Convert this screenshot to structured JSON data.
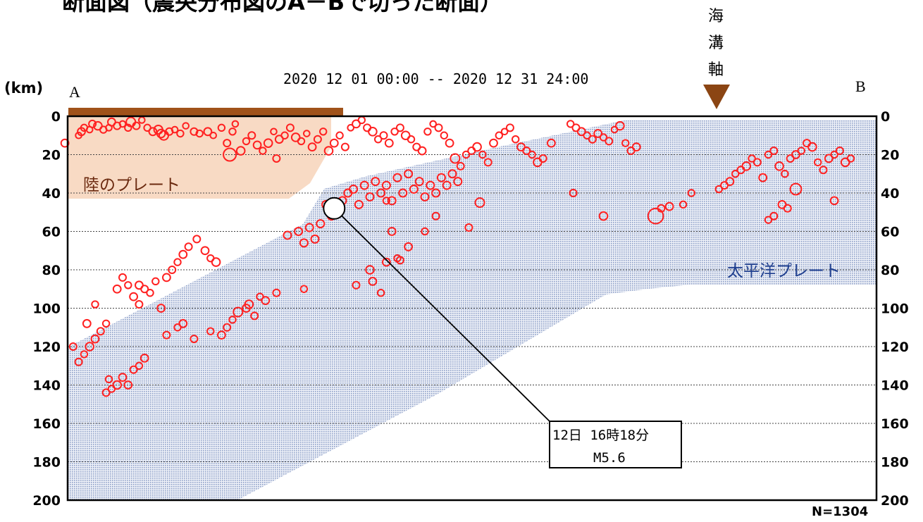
{
  "title": "断面図（震央分布図のA－Bで切った断面）",
  "period": "2020 12 01 00:00 -- 2020 12 31 24:00",
  "unit_label": "(km)",
  "end_labels": {
    "left": "A",
    "right": "B"
  },
  "trench": {
    "label_chars": [
      "海",
      "溝",
      "軸"
    ],
    "color": "#8B4513"
  },
  "land_plate_label": "陸のプレート",
  "pacific_plate_label": "太平洋プレート",
  "count_label": "N=1304",
  "callout": {
    "line1": "12日 16時18分",
    "line2": "M5.6"
  },
  "colors": {
    "event": "#ff2020",
    "land_plate": "#f5c8a8",
    "pacific_plate": "#aab7d6",
    "land_label": "#6b2a10",
    "pacific_label": "#1f3f8f",
    "land_bar": "#a0521a"
  },
  "chart_data": {
    "type": "scatter",
    "ylabel": "(km)",
    "ylim": [
      0,
      200
    ],
    "yticks": [
      0,
      20,
      40,
      60,
      80,
      100,
      120,
      140,
      160,
      180,
      200
    ],
    "y_inverted": true,
    "grid": "horizontal dashed",
    "series": [
      {
        "description": "hypocenters (distance along A-B, depth km, magnitude)",
        "points": [
          [
            -1,
            14,
            1.5
          ],
          [
            4,
            10,
            1.2
          ],
          [
            5,
            8,
            1.5
          ],
          [
            6,
            6,
            1.3
          ],
          [
            8,
            7,
            1.2
          ],
          [
            9,
            4,
            1.4
          ],
          [
            11,
            5,
            1.6
          ],
          [
            13,
            7,
            1.3
          ],
          [
            15,
            6,
            1.2
          ],
          [
            16,
            3,
            1.5
          ],
          [
            18,
            5,
            1.4
          ],
          [
            20,
            4,
            1.2
          ],
          [
            22,
            6,
            1.3
          ],
          [
            23,
            3,
            1.8
          ],
          [
            25,
            5,
            1.4
          ],
          [
            27,
            2,
            1.2
          ],
          [
            29,
            6,
            1.3
          ],
          [
            31,
            8,
            1.5
          ],
          [
            33,
            7,
            1.7
          ],
          [
            34,
            9,
            1.6
          ],
          [
            35,
            10,
            1.8
          ],
          [
            37,
            8,
            1.4
          ],
          [
            39,
            7,
            1.2
          ],
          [
            41,
            9,
            1.3
          ],
          [
            43,
            5,
            1.2
          ],
          [
            46,
            8,
            1.4
          ],
          [
            48,
            9,
            1.3
          ],
          [
            51,
            8,
            1.5
          ],
          [
            53,
            10,
            1.2
          ],
          [
            56,
            6,
            1.3
          ],
          [
            58,
            14,
            1.4
          ],
          [
            59,
            20,
            2.5
          ],
          [
            60,
            8,
            1.3
          ],
          [
            61,
            4,
            1.2
          ],
          [
            63,
            18,
            1.6
          ],
          [
            65,
            13,
            1.3
          ],
          [
            67,
            10,
            1.4
          ],
          [
            69,
            15,
            1.5
          ],
          [
            71,
            18,
            1.3
          ],
          [
            73,
            14,
            1.6
          ],
          [
            75,
            8,
            1.2
          ],
          [
            76,
            22,
            1.4
          ],
          [
            77,
            12,
            1.5
          ],
          [
            79,
            10,
            1.3
          ],
          [
            81,
            6,
            1.4
          ],
          [
            83,
            11,
            1.6
          ],
          [
            85,
            13,
            1.3
          ],
          [
            87,
            9,
            1.2
          ],
          [
            89,
            16,
            1.5
          ],
          [
            91,
            12,
            1.4
          ],
          [
            93,
            8,
            1.3
          ],
          [
            95,
            18,
            1.6
          ],
          [
            97,
            14,
            1.5
          ],
          [
            99,
            10,
            1.3
          ],
          [
            101,
            16,
            1.4
          ],
          [
            103,
            6,
            1.2
          ],
          [
            105,
            4,
            1.5
          ],
          [
            107,
            2,
            1.3
          ],
          [
            109,
            6,
            1.4
          ],
          [
            111,
            8,
            1.6
          ],
          [
            113,
            12,
            1.3
          ],
          [
            115,
            10,
            1.4
          ],
          [
            117,
            14,
            1.5
          ],
          [
            119,
            8,
            1.3
          ],
          [
            121,
            6,
            1.4
          ],
          [
            123,
            10,
            1.6
          ],
          [
            125,
            12,
            1.3
          ],
          [
            127,
            16,
            1.4
          ],
          [
            129,
            18,
            1.5
          ],
          [
            131,
            8,
            1.3
          ],
          [
            133,
            4,
            1.2
          ],
          [
            135,
            6,
            1.4
          ],
          [
            137,
            10,
            1.3
          ],
          [
            139,
            14,
            1.5
          ],
          [
            141,
            22,
            1.8
          ],
          [
            143,
            26,
            1.4
          ],
          [
            145,
            20,
            1.3
          ],
          [
            147,
            18,
            1.4
          ],
          [
            149,
            16,
            1.6
          ],
          [
            151,
            20,
            1.3
          ],
          [
            153,
            24,
            1.4
          ],
          [
            155,
            14,
            1.5
          ],
          [
            157,
            10,
            1.3
          ],
          [
            159,
            8,
            1.2
          ],
          [
            161,
            6,
            1.4
          ],
          [
            163,
            12,
            1.3
          ],
          [
            165,
            16,
            1.5
          ],
          [
            167,
            18,
            1.4
          ],
          [
            169,
            20,
            1.3
          ],
          [
            171,
            24,
            1.6
          ],
          [
            173,
            22,
            1.4
          ],
          [
            176,
            14,
            1.5
          ],
          [
            183,
            4,
            1.3
          ],
          [
            185,
            6,
            1.4
          ],
          [
            187,
            8,
            1.5
          ],
          [
            189,
            10,
            1.3
          ],
          [
            191,
            12,
            1.4
          ],
          [
            193,
            9,
            1.5
          ],
          [
            195,
            11,
            1.3
          ],
          [
            197,
            13,
            1.4
          ],
          [
            199,
            7,
            1.2
          ],
          [
            201,
            5,
            1.6
          ],
          [
            203,
            14,
            1.3
          ],
          [
            205,
            18,
            1.4
          ],
          [
            207,
            16,
            1.5
          ],
          [
            237,
            38,
            1.3
          ],
          [
            239,
            36,
            1.4
          ],
          [
            241,
            34,
            1.5
          ],
          [
            243,
            30,
            1.3
          ],
          [
            245,
            28,
            1.4
          ],
          [
            247,
            26,
            1.6
          ],
          [
            249,
            22,
            1.3
          ],
          [
            251,
            24,
            1.4
          ],
          [
            253,
            32,
            1.5
          ],
          [
            255,
            20,
            1.3
          ],
          [
            257,
            18,
            1.4
          ],
          [
            259,
            26,
            1.6
          ],
          [
            261,
            30,
            1.3
          ],
          [
            263,
            22,
            1.4
          ],
          [
            265,
            20,
            1.5
          ],
          [
            267,
            18,
            1.3
          ],
          [
            269,
            14,
            1.4
          ],
          [
            271,
            16,
            1.6
          ],
          [
            273,
            24,
            1.3
          ],
          [
            275,
            28,
            1.4
          ],
          [
            277,
            22,
            1.5
          ],
          [
            279,
            20,
            1.3
          ],
          [
            281,
            18,
            1.4
          ],
          [
            283,
            24,
            1.6
          ],
          [
            285,
            22,
            1.3
          ],
          [
            265,
            38,
            2.2
          ],
          [
            260,
            46,
            1.5
          ],
          [
            257,
            52,
            1.4
          ],
          [
            255,
            54,
            1.3
          ],
          [
            262,
            48,
            1.4
          ],
          [
            279,
            44,
            1.5
          ],
          [
            224,
            46,
            1.3
          ],
          [
            214,
            52,
            3.0
          ],
          [
            216,
            48,
            1.4
          ],
          [
            219,
            47,
            1.5
          ],
          [
            227,
            40,
            1.3
          ],
          [
            184,
            40,
            1.4
          ],
          [
            195,
            52,
            1.6
          ],
          [
            150,
            45,
            1.8
          ],
          [
            146,
            58,
            1.4
          ],
          [
            116,
            44,
            1.3
          ],
          [
            118,
            60,
            1.5
          ],
          [
            120,
            74,
            1.3
          ],
          [
            121,
            75,
            1.4
          ],
          [
            116,
            76,
            1.5
          ],
          [
            130,
            60,
            1.3
          ],
          [
            134,
            52,
            1.4
          ],
          [
            124,
            68,
            1.5
          ],
          [
            110,
            80,
            1.6
          ],
          [
            114,
            92,
            1.3
          ],
          [
            105,
            88,
            1.4
          ],
          [
            111,
            86,
            1.5
          ],
          [
            86,
            90,
            1.3
          ],
          [
            76,
            92,
            1.4
          ],
          [
            72,
            96,
            1.5
          ],
          [
            70,
            94,
            1.3
          ],
          [
            66,
            98,
            1.6
          ],
          [
            62,
            102,
            1.8
          ],
          [
            65,
            100,
            1.5
          ],
          [
            68,
            104,
            1.4
          ],
          [
            60,
            106,
            1.3
          ],
          [
            58,
            110,
            1.4
          ],
          [
            56,
            114,
            1.5
          ],
          [
            52,
            112,
            1.3
          ],
          [
            46,
            116,
            1.4
          ],
          [
            42,
            108,
            1.5
          ],
          [
            40,
            110,
            1.3
          ],
          [
            36,
            114,
            1.4
          ],
          [
            34,
            100,
            1.5
          ],
          [
            30,
            92,
            1.3
          ],
          [
            26,
            98,
            1.4
          ],
          [
            24,
            94,
            1.5
          ],
          [
            22,
            88,
            1.3
          ],
          [
            20,
            84,
            1.4
          ],
          [
            18,
            90,
            1.5
          ],
          [
            14,
            108,
            1.3
          ],
          [
            12,
            112,
            1.4
          ],
          [
            10,
            116,
            1.5
          ],
          [
            8,
            120,
            1.6
          ],
          [
            6,
            124,
            1.3
          ],
          [
            4,
            128,
            1.4
          ],
          [
            28,
            126,
            1.5
          ],
          [
            26,
            130,
            1.3
          ],
          [
            24,
            132,
            1.4
          ],
          [
            20,
            136,
            1.5
          ],
          [
            18,
            140,
            1.6
          ],
          [
            16,
            142,
            1.3
          ],
          [
            14,
            144,
            1.4
          ],
          [
            22,
            140,
            1.5
          ],
          [
            15,
            137,
            1.3
          ],
          [
            2,
            120,
            1.4
          ],
          [
            7,
            108,
            1.5
          ],
          [
            10,
            98,
            1.3
          ],
          [
            47,
            64,
            1.4
          ],
          [
            50,
            70,
            1.5
          ],
          [
            52,
            74,
            1.3
          ],
          [
            54,
            76,
            1.6
          ],
          [
            44,
            68,
            1.4
          ],
          [
            42,
            72,
            1.5
          ],
          [
            40,
            76,
            1.3
          ],
          [
            38,
            80,
            1.4
          ],
          [
            36,
            84,
            1.5
          ],
          [
            32,
            86,
            1.3
          ],
          [
            28,
            90,
            1.4
          ],
          [
            26,
            88,
            1.5
          ]
        ]
      }
    ],
    "highlight": {
      "x": 97,
      "y": 48,
      "label": "12日 16時18分 M5.6"
    }
  }
}
